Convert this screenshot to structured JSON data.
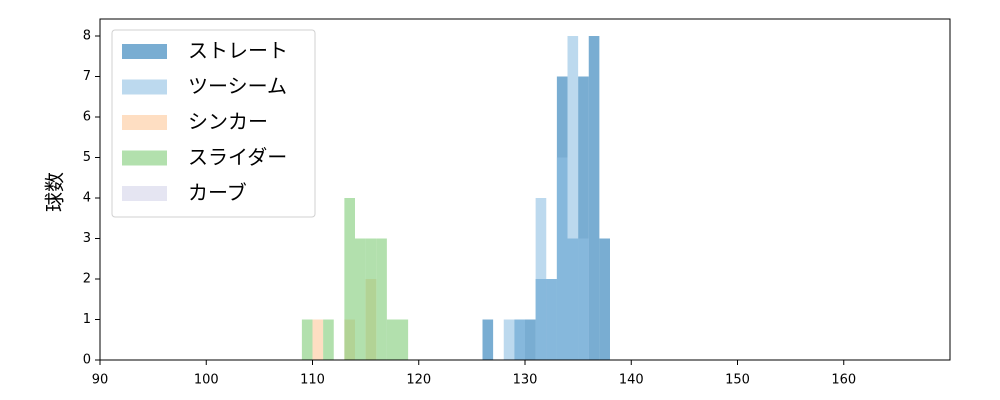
{
  "chart_data": {
    "type": "histogram",
    "y_label": "球数",
    "xlim": [
      90,
      170
    ],
    "ylim": [
      0,
      8.42
    ],
    "xticks": [
      90,
      100,
      110,
      120,
      130,
      140,
      150,
      160
    ],
    "yticks": [
      0,
      1,
      2,
      3,
      4,
      5,
      6,
      7,
      8
    ],
    "legend": "upper left",
    "series": [
      {
        "name": "ストレート",
        "color": "#1f77b4",
        "bins": [
          126,
          127,
          128,
          129,
          130,
          131,
          132,
          133,
          134,
          135,
          136,
          137,
          138
        ],
        "values": [
          1,
          0,
          0,
          1,
          1,
          2,
          2,
          7,
          3,
          7,
          8,
          3
        ]
      },
      {
        "name": "ツーシーム",
        "color": "#8fc0e3",
        "bins": [
          128,
          129,
          130,
          131,
          132,
          133,
          134,
          135,
          136
        ],
        "values": [
          1,
          1,
          0,
          4,
          2,
          5,
          8,
          3
        ]
      },
      {
        "name": "シンカー",
        "color": "#fdc89a",
        "bins": [
          110,
          111,
          112,
          113,
          114,
          115,
          116
        ],
        "values": [
          1,
          0,
          0,
          1,
          0,
          2
        ]
      },
      {
        "name": "スライダー",
        "color": "#7fcc77",
        "bins": [
          109,
          110,
          111,
          112,
          113,
          114,
          115,
          116,
          117,
          118,
          119
        ],
        "values": [
          1,
          0,
          1,
          0,
          4,
          3,
          3,
          3,
          1,
          1
        ]
      },
      {
        "name": "カーブ",
        "color": "#d4d4ea",
        "bins": [],
        "values": []
      }
    ]
  }
}
